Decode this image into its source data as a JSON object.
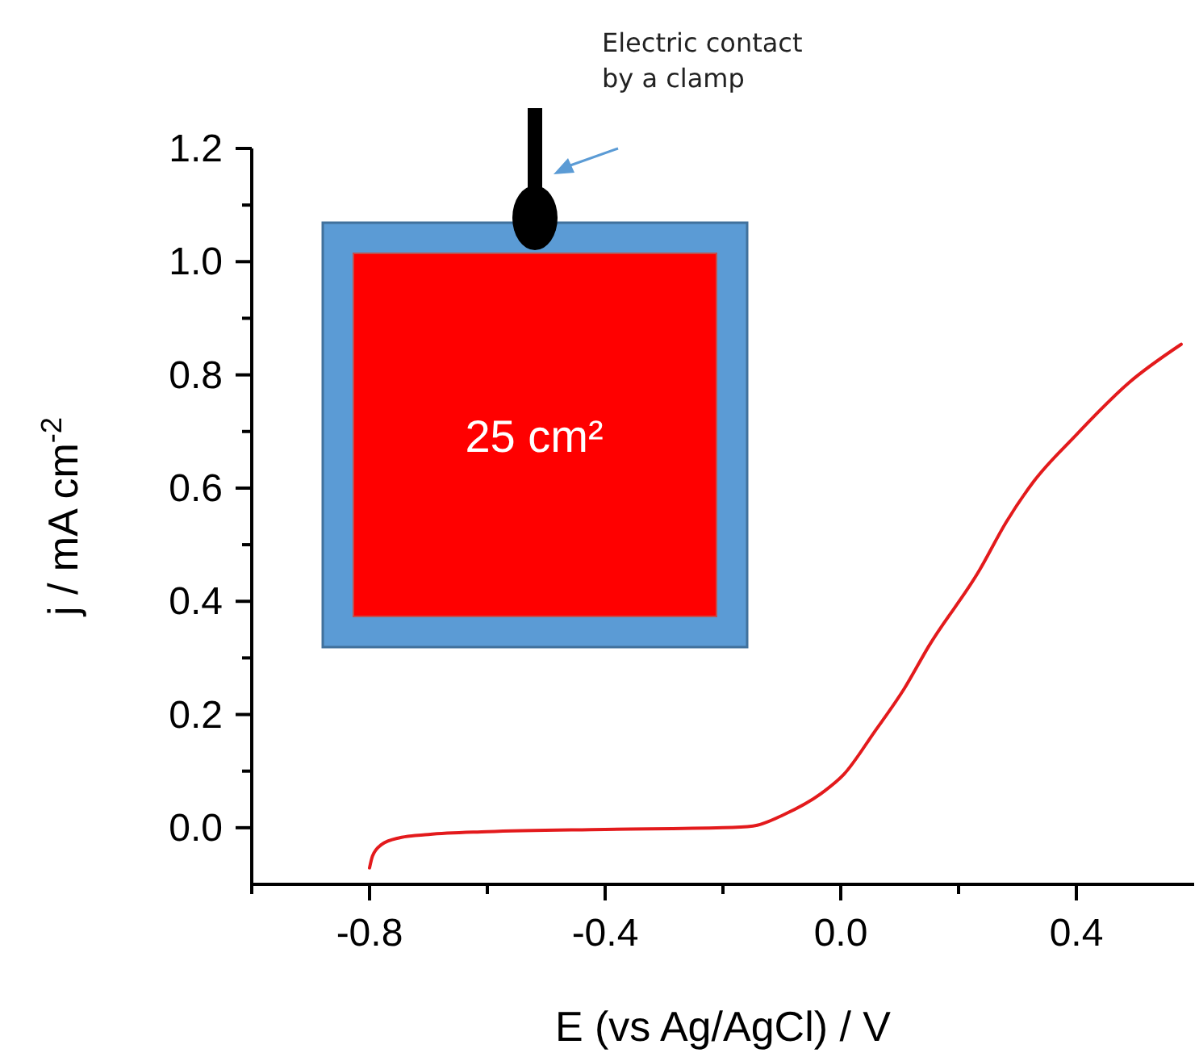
{
  "chart_data": {
    "type": "line",
    "xlabel": "E (vs Ag/AgCl) / V",
    "ylabel": "j / mA cm$^{-2}$",
    "xlim": [
      -1.0,
      0.6
    ],
    "ylim": [
      -0.1,
      1.2
    ],
    "xticks": [
      {
        "value": -1.0,
        "label": null
      },
      {
        "value": -0.8,
        "label": "-0.8"
      },
      {
        "value": -0.6,
        "label": null
      },
      {
        "value": -0.4,
        "label": "-0.4"
      },
      {
        "value": -0.2,
        "label": null
      },
      {
        "value": 0.0,
        "label": "0.0"
      },
      {
        "value": 0.2,
        "label": null
      },
      {
        "value": 0.4,
        "label": "0.4"
      }
    ],
    "yticks": [
      {
        "value": 0.0,
        "label": "0.0"
      },
      {
        "value": 0.1,
        "label": null
      },
      {
        "value": 0.2,
        "label": "0.2"
      },
      {
        "value": 0.3,
        "label": null
      },
      {
        "value": 0.4,
        "label": "0.4"
      },
      {
        "value": 0.5,
        "label": null
      },
      {
        "value": 0.6,
        "label": "0.6"
      },
      {
        "value": 0.7,
        "label": null
      },
      {
        "value": 0.8,
        "label": "0.8"
      },
      {
        "value": 0.9,
        "label": null
      },
      {
        "value": 1.0,
        "label": "1.0"
      },
      {
        "value": 1.1,
        "label": null
      },
      {
        "value": 1.2,
        "label": "1.2"
      }
    ],
    "grid": false,
    "marker": "none",
    "line_style": "solid",
    "annotations": [
      "Electric contact by a clamp",
      "25 cm²"
    ],
    "series": [
      {
        "color": "#e31a1c",
        "x": [
          -0.8,
          -0.795,
          -0.78,
          -0.75,
          -0.7,
          -0.6,
          -0.4,
          -0.2,
          -0.149,
          -0.097,
          -0.03,
          0.005,
          0.057,
          0.108,
          0.149,
          0.235,
          0.281,
          0.327,
          0.397,
          0.489,
          0.578
        ],
        "values": [
          -0.071,
          -0.05,
          -0.03,
          -0.018,
          -0.012,
          -0.007,
          -0.003,
          0.0,
          0.003,
          0.023,
          0.063,
          0.094,
          0.169,
          0.246,
          0.32,
          0.454,
          0.54,
          0.611,
          0.691,
          0.786,
          0.854
        ]
      }
    ]
  }
}
